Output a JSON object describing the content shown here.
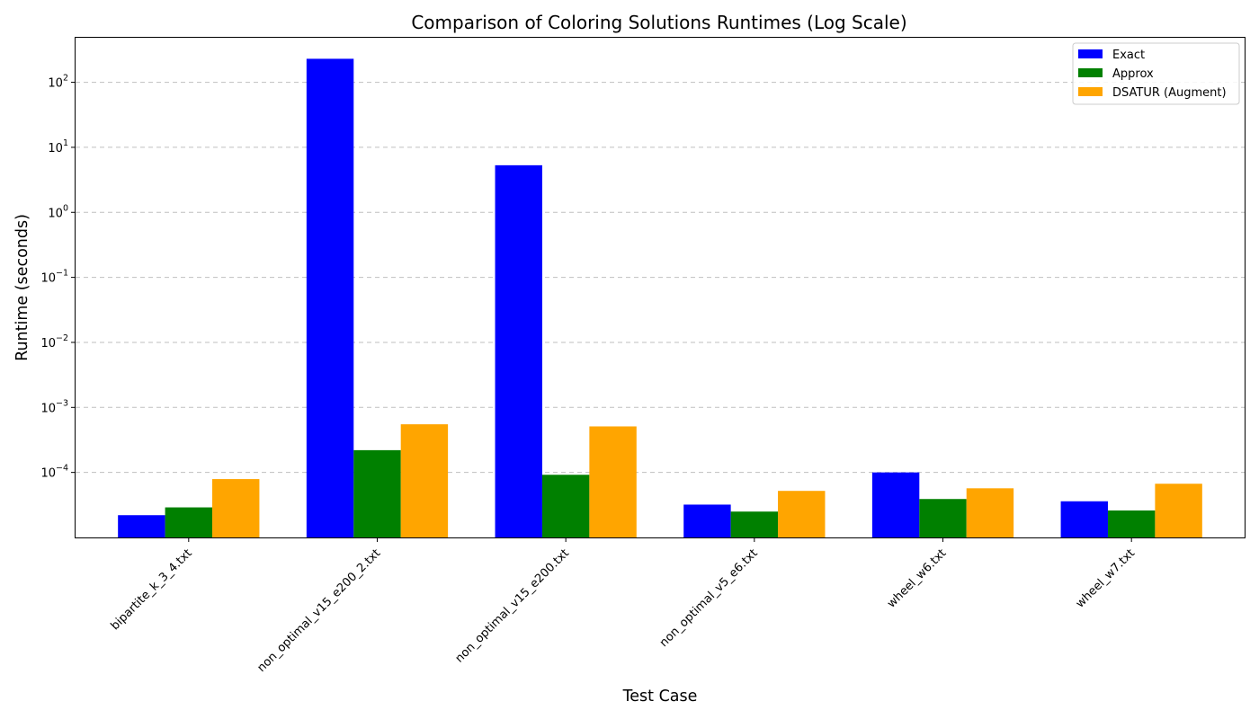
{
  "chart_data": {
    "type": "bar",
    "title": "Comparison of Coloring Solutions Runtimes (Log Scale)",
    "xlabel": "Test Case",
    "ylabel": "Runtime (seconds)",
    "yscale": "log",
    "ylim": [
      1e-05,
      500
    ],
    "yticks": [
      {
        "value": 0.0001,
        "base": "10",
        "exp": "−4"
      },
      {
        "value": 0.001,
        "base": "10",
        "exp": "−3"
      },
      {
        "value": 0.01,
        "base": "10",
        "exp": "−2"
      },
      {
        "value": 0.1,
        "base": "10",
        "exp": "−1"
      },
      {
        "value": 1,
        "base": "10",
        "exp": "0"
      },
      {
        "value": 10,
        "base": "10",
        "exp": "1"
      },
      {
        "value": 100,
        "base": "10",
        "exp": "2"
      }
    ],
    "grid": "horizontal dashed",
    "legend_position": "top-right",
    "categories": [
      "bipartite_k_3_4.txt",
      "non_optimal_v15_e200_2.txt",
      "non_optimal_v15_e200.txt",
      "non_optimal_v5_e6.txt",
      "wheel_w6.txt",
      "wheel_w7.txt"
    ],
    "series": [
      {
        "name": "Exact",
        "color": "#0000ff",
        "values": [
          2.2e-05,
          230,
          5.3,
          3.2e-05,
          0.0001,
          3.6e-05
        ]
      },
      {
        "name": "Approx",
        "color": "#008000",
        "values": [
          2.9e-05,
          0.00022,
          9.2e-05,
          2.5e-05,
          3.9e-05,
          2.6e-05
        ]
      },
      {
        "name": "DSATUR (Augment)",
        "color": "#ffa500",
        "values": [
          7.9e-05,
          0.00055,
          0.00051,
          5.2e-05,
          5.7e-05,
          6.7e-05
        ]
      }
    ]
  }
}
